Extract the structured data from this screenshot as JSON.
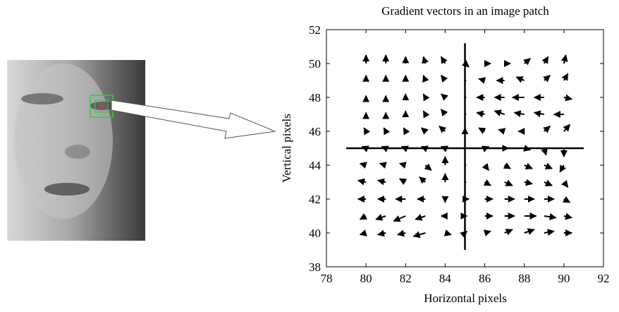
{
  "chart_data": {
    "type": "quiver",
    "title": "Gradient vectors in an image patch",
    "xlabel": "Horizontal pixels",
    "ylabel": "Vertical pixels",
    "xlim": [
      78,
      92
    ],
    "ylim": [
      38,
      52
    ],
    "xticks": [
      78,
      80,
      82,
      84,
      86,
      88,
      90,
      92
    ],
    "yticks": [
      38,
      40,
      42,
      44,
      46,
      48,
      50,
      52
    ],
    "color": "#000000",
    "crosshair": {
      "x": 85,
      "y": 45,
      "xspan": [
        79,
        91
      ],
      "yspan": [
        39,
        51.2
      ]
    },
    "x": [
      80,
      81,
      82,
      83,
      84,
      85,
      86,
      87,
      88,
      89,
      90
    ],
    "y": [
      40,
      41,
      42,
      43,
      44,
      45,
      46,
      47,
      48,
      49,
      50
    ],
    "u": [
      [
        -0.3,
        -0.4,
        -0.4,
        -0.6,
        0.3,
        0.1,
        0.3,
        0.4,
        0.5,
        0.5,
        0.4
      ],
      [
        -0.3,
        -0.5,
        -0.6,
        -0.5,
        -0.2,
        0.1,
        0.4,
        0.5,
        0.6,
        0.6,
        0.4
      ],
      [
        -0.4,
        -0.4,
        -0.5,
        -0.4,
        0,
        0.2,
        0.4,
        0.5,
        0.5,
        0.5,
        0.3
      ],
      [
        -0.4,
        -0.4,
        -0.3,
        -0.3,
        0,
        0,
        0.3,
        0.4,
        0.4,
        0.4,
        0.2
      ],
      [
        -0.3,
        -0.3,
        -0.3,
        0.3,
        0,
        0,
        0.2,
        0.3,
        0.4,
        0.4,
        -0.2
      ],
      [
        -0.2,
        -0.2,
        -0.2,
        -0.2,
        -0.2,
        0,
        0.2,
        0.2,
        0.3,
        0.1,
        0
      ],
      [
        -0.1,
        -0.1,
        -0.1,
        -0.2,
        -0.3,
        0,
        -0.3,
        -0.3,
        -0.3,
        0.3,
        0.3
      ],
      [
        0,
        0,
        0,
        -0.1,
        -0.2,
        0,
        -0.4,
        -0.5,
        -0.5,
        -0.5,
        -0.5
      ],
      [
        0,
        0,
        0,
        -0.1,
        -0.2,
        0,
        -0.4,
        -0.5,
        -0.6,
        -0.5,
        0.4
      ],
      [
        0,
        0,
        0,
        -0.1,
        -0.2,
        0,
        -0.3,
        -0.4,
        -0.4,
        0.3,
        0.2
      ],
      [
        0,
        0,
        0,
        -0.1,
        -0.2,
        0.2,
        0.3,
        0.3,
        0.3,
        0.2,
        0.1
      ]
    ],
    "v": [
      [
        -0.1,
        -0.1,
        -0.1,
        -0.2,
        -0.1,
        0.1,
        0.1,
        0.2,
        0.2,
        0.1,
        0
      ],
      [
        -0.2,
        -0.2,
        -0.3,
        -0.2,
        0,
        0,
        0,
        0,
        0,
        -0.1,
        -0.1
      ],
      [
        0,
        0,
        0,
        0,
        -0.2,
        0,
        0,
        0,
        0,
        0,
        -0.2
      ],
      [
        0.1,
        0.1,
        0.2,
        0.3,
        0.5,
        0,
        -0.2,
        -0.2,
        -0.1,
        -0.2,
        -0.3
      ],
      [
        0.1,
        0.1,
        0.1,
        -0.3,
        0.5,
        0,
        -0.3,
        -0.2,
        -0.2,
        -0.2,
        -0.4
      ],
      [
        0.1,
        0.1,
        0.1,
        0.1,
        0.1,
        0,
        0.1,
        0,
        -0.1,
        -0.4,
        -0.5
      ],
      [
        0.2,
        0.2,
        0.2,
        0.2,
        0.3,
        0.2,
        0.2,
        0.1,
        0,
        0.3,
        0.4
      ],
      [
        0.1,
        0.1,
        0.2,
        0.2,
        0.3,
        0,
        0.1,
        0.2,
        0.1,
        0.1,
        0
      ],
      [
        0.1,
        0.1,
        0.2,
        0.2,
        0.2,
        0,
        0,
        0,
        0,
        0,
        -0.1
      ],
      [
        0.3,
        0.3,
        0.3,
        0.3,
        0.3,
        0,
        0.1,
        0,
        0.2,
        0.3,
        0.4
      ],
      [
        0.5,
        0.5,
        0.4,
        0.4,
        0.4,
        -0.2,
        0,
        0,
        0.3,
        0.4,
        0.5
      ]
    ]
  }
}
